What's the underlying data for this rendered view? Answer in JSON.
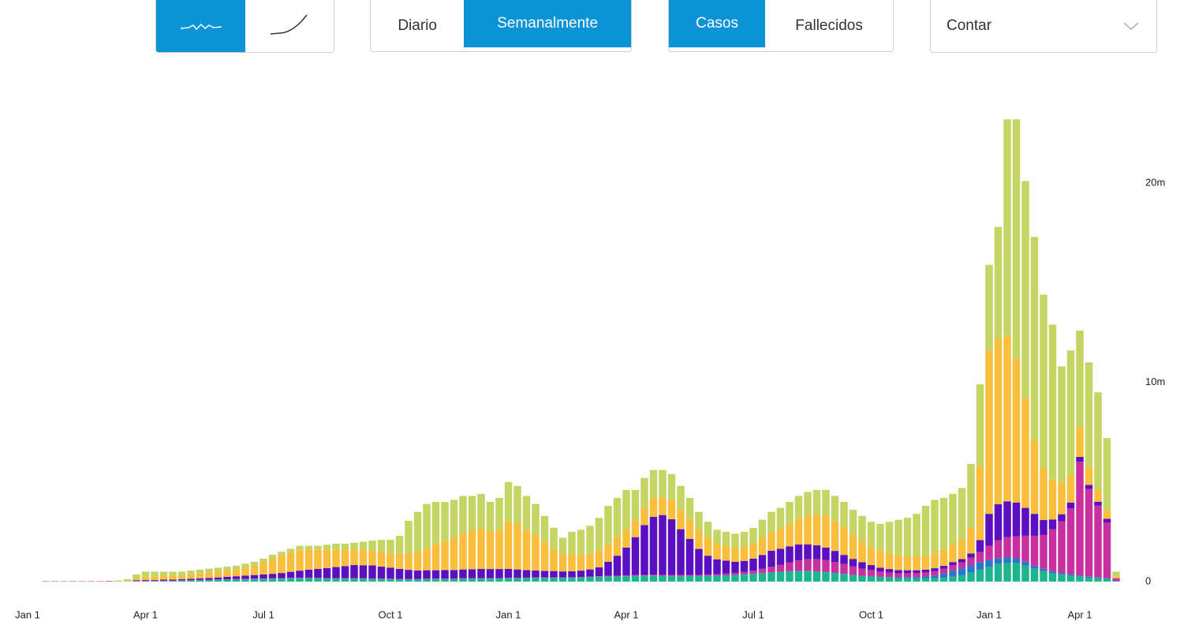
{
  "controls": {
    "period": [
      "Diario",
      "Semanalmente"
    ],
    "metric": [
      "Casos",
      "Fallecidos"
    ],
    "mode": "Contar"
  },
  "chart_data": {
    "type": "stacked_bar",
    "categories": [
      "Jan 1",
      null,
      null,
      null,
      null,
      null,
      null,
      null,
      null,
      null,
      null,
      null,
      null,
      "Apr 1",
      null,
      null,
      null,
      null,
      null,
      null,
      null,
      null,
      null,
      null,
      null,
      null,
      "Jul 1",
      null,
      null,
      null,
      null,
      null,
      null,
      null,
      null,
      null,
      null,
      null,
      null,
      null,
      "Oct 1",
      null,
      null,
      null,
      null,
      null,
      null,
      null,
      null,
      null,
      null,
      null,
      null,
      "Jan 1",
      null,
      null,
      null,
      null,
      null,
      null,
      null,
      null,
      null,
      null,
      null,
      null,
      "Apr 1",
      null,
      null,
      null,
      null,
      null,
      null,
      null,
      null,
      null,
      null,
      null,
      null,
      null,
      "Jul 1",
      null,
      null,
      null,
      null,
      null,
      null,
      null,
      null,
      null,
      null,
      null,
      null,
      "Oct 1",
      null,
      null,
      null,
      null,
      null,
      null,
      null,
      null,
      null,
      null,
      null,
      null,
      "Jan 1",
      null,
      null,
      null,
      null,
      null,
      null,
      null,
      null,
      null,
      "Apr 1",
      null,
      null,
      null,
      null
    ],
    "ylim": [
      0,
      24
    ],
    "yticks": [
      0,
      {
        "value": 10,
        "label": "10m"
      },
      {
        "value": 20,
        "label": "20m"
      }
    ],
    "series": [
      {
        "color": "#1db58c",
        "values": [
          0,
          0,
          0,
          0,
          0,
          0,
          0,
          0,
          0,
          0,
          0,
          0,
          0.01,
          0.02,
          0.02,
          0.03,
          0.03,
          0.04,
          0.05,
          0.06,
          0.07,
          0.08,
          0.09,
          0.1,
          0.11,
          0.12,
          0.13,
          0.14,
          0.15,
          0.16,
          0.17,
          0.17,
          0.16,
          0.15,
          0.15,
          0.15,
          0.15,
          0.14,
          0.13,
          0.12,
          0.12,
          0.11,
          0.11,
          0.11,
          0.12,
          0.12,
          0.13,
          0.13,
          0.14,
          0.14,
          0.15,
          0.15,
          0.15,
          0.16,
          0.16,
          0.17,
          0.18,
          0.18,
          0.18,
          0.18,
          0.19,
          0.2,
          0.22,
          0.24,
          0.25,
          0.26,
          0.27,
          0.28,
          0.29,
          0.29,
          0.28,
          0.27,
          0.27,
          0.28,
          0.28,
          0.28,
          0.29,
          0.3,
          0.32,
          0.35,
          0.38,
          0.42,
          0.45,
          0.48,
          0.5,
          0.52,
          0.52,
          0.5,
          0.47,
          0.42,
          0.37,
          0.32,
          0.28,
          0.25,
          0.22,
          0.2,
          0.18,
          0.17,
          0.16,
          0.16,
          0.17,
          0.2,
          0.25,
          0.32,
          0.45,
          0.6,
          0.75,
          0.88,
          0.95,
          0.92,
          0.8,
          0.65,
          0.52,
          0.42,
          0.35,
          0.3,
          0.25,
          0.2,
          0.17,
          0.14,
          0.02
        ]
      },
      {
        "color": "#2a77c9",
        "values": [
          0,
          0,
          0,
          0,
          0,
          0,
          0,
          0,
          0,
          0,
          0,
          0,
          0.01,
          0.01,
          0.01,
          0.01,
          0.01,
          0.01,
          0.01,
          0.01,
          0.01,
          0.01,
          0.01,
          0.01,
          0.01,
          0.01,
          0.01,
          0.01,
          0.01,
          0.01,
          0.01,
          0.01,
          0.01,
          0.01,
          0.01,
          0.01,
          0.01,
          0.01,
          0.01,
          0.01,
          0.01,
          0.01,
          0.01,
          0.01,
          0.01,
          0.01,
          0.01,
          0.01,
          0.01,
          0.01,
          0.01,
          0.01,
          0.01,
          0.01,
          0.01,
          0.01,
          0.01,
          0.01,
          0.01,
          0.01,
          0.01,
          0.01,
          0.01,
          0.01,
          0.01,
          0.01,
          0.01,
          0.01,
          0.01,
          0.01,
          0.01,
          0.01,
          0.01,
          0.01,
          0.01,
          0.01,
          0.01,
          0.02,
          0.02,
          0.02,
          0.02,
          0.02,
          0.02,
          0.02,
          0.02,
          0.02,
          0.02,
          0.02,
          0.02,
          0.02,
          0.02,
          0.02,
          0.02,
          0.03,
          0.03,
          0.03,
          0.04,
          0.05,
          0.07,
          0.1,
          0.14,
          0.2,
          0.3,
          0.35,
          0.38,
          0.38,
          0.35,
          0.3,
          0.28,
          0.25,
          0.2,
          0.15,
          0.12,
          0.1,
          0.08,
          0.07,
          0.06,
          0.05,
          0.04,
          0.03,
          0.01
        ]
      },
      {
        "color": "#c8309f",
        "values": [
          0,
          0,
          0.02,
          0.02,
          0.02,
          0.02,
          0.02,
          0.02,
          0.02,
          0.03,
          0.01,
          0.01,
          0.02,
          0.02,
          0.02,
          0.02,
          0.02,
          0.02,
          0.02,
          0.02,
          0.02,
          0.02,
          0.02,
          0.02,
          0.02,
          0.02,
          0.02,
          0.02,
          0.02,
          0.02,
          0.02,
          0.02,
          0.02,
          0.02,
          0.02,
          0.02,
          0.02,
          0.02,
          0.02,
          0.02,
          0.02,
          0.02,
          0.02,
          0.02,
          0.02,
          0.02,
          0.02,
          0.02,
          0.02,
          0.02,
          0.02,
          0.02,
          0.02,
          0.02,
          0.02,
          0.02,
          0.02,
          0.02,
          0.02,
          0.02,
          0.02,
          0.02,
          0.02,
          0.02,
          0.03,
          0.03,
          0.03,
          0.04,
          0.04,
          0.05,
          0.05,
          0.05,
          0.05,
          0.05,
          0.05,
          0.06,
          0.07,
          0.08,
          0.1,
          0.12,
          0.15,
          0.2,
          0.28,
          0.35,
          0.45,
          0.52,
          0.58,
          0.6,
          0.6,
          0.55,
          0.5,
          0.42,
          0.35,
          0.3,
          0.25,
          0.22,
          0.2,
          0.2,
          0.2,
          0.2,
          0.22,
          0.25,
          0.28,
          0.3,
          0.38,
          0.5,
          0.7,
          0.9,
          1.0,
          1.1,
          1.3,
          1.5,
          1.7,
          2.1,
          2.6,
          3.3,
          5.7,
          4.4,
          3.6,
          2.8,
          0.12
        ]
      },
      {
        "color": "#5a0fc0",
        "values": [
          0,
          0,
          0,
          0,
          0,
          0,
          0,
          0,
          0,
          0,
          0,
          0,
          0.02,
          0.03,
          0.03,
          0.04,
          0.04,
          0.05,
          0.06,
          0.07,
          0.08,
          0.1,
          0.12,
          0.14,
          0.16,
          0.18,
          0.2,
          0.22,
          0.25,
          0.3,
          0.35,
          0.4,
          0.45,
          0.5,
          0.55,
          0.6,
          0.65,
          0.65,
          0.65,
          0.6,
          0.55,
          0.5,
          0.45,
          0.42,
          0.42,
          0.42,
          0.42,
          0.42,
          0.44,
          0.45,
          0.46,
          0.45,
          0.45,
          0.45,
          0.42,
          0.38,
          0.35,
          0.33,
          0.32,
          0.3,
          0.3,
          0.32,
          0.36,
          0.45,
          0.7,
          1.0,
          1.4,
          1.9,
          2.5,
          2.9,
          3.0,
          2.8,
          2.3,
          1.8,
          1.3,
          0.95,
          0.75,
          0.65,
          0.55,
          0.55,
          0.6,
          0.7,
          0.8,
          0.8,
          0.8,
          0.8,
          0.75,
          0.7,
          0.62,
          0.55,
          0.45,
          0.38,
          0.32,
          0.25,
          0.2,
          0.18,
          0.16,
          0.15,
          0.14,
          0.14,
          0.14,
          0.14,
          0.15,
          0.16,
          0.2,
          0.6,
          1.6,
          1.8,
          1.8,
          1.7,
          1.4,
          1.1,
          0.75,
          0.5,
          0.35,
          0.3,
          0.25,
          0.2,
          0.2,
          0.18,
          0.02
        ]
      },
      {
        "color": "#fbbd3c",
        "values": [
          0,
          0,
          0,
          0,
          0,
          0,
          0,
          0,
          0,
          0,
          0,
          0.02,
          0.1,
          0.15,
          0.17,
          0.18,
          0.2,
          0.2,
          0.22,
          0.25,
          0.27,
          0.29,
          0.31,
          0.33,
          0.4,
          0.47,
          0.59,
          0.76,
          0.87,
          0.96,
          1.05,
          1.0,
          0.96,
          0.92,
          0.87,
          0.82,
          0.77,
          0.78,
          0.75,
          0.75,
          0.7,
          0.76,
          0.86,
          0.94,
          1.1,
          1.3,
          1.45,
          1.6,
          1.8,
          1.95,
          2.05,
          1.9,
          2.0,
          2.4,
          2.3,
          2.0,
          1.8,
          1.45,
          1.1,
          0.85,
          0.85,
          0.8,
          0.8,
          0.85,
          0.9,
          0.95,
          0.9,
          0.85,
          0.86,
          0.95,
          0.9,
          0.95,
          0.97,
          1.0,
          0.96,
          0.9,
          0.8,
          0.75,
          0.7,
          0.7,
          0.75,
          0.86,
          0.95,
          1.0,
          1.1,
          1.3,
          1.45,
          1.55,
          1.6,
          1.5,
          1.4,
          1.2,
          1.05,
          0.9,
          0.85,
          0.8,
          0.75,
          0.7,
          0.7,
          0.7,
          0.75,
          0.8,
          0.9,
          1.0,
          1.3,
          3.7,
          8.2,
          8.3,
          8.3,
          7.2,
          5.5,
          3.7,
          2.6,
          2.0,
          1.6,
          1.4,
          1.5,
          0.9,
          0.6,
          0.45,
          0.08
        ]
      },
      {
        "color": "#c5d463",
        "values": [
          0,
          0,
          0,
          0,
          0,
          0,
          0,
          0,
          0,
          0,
          0.05,
          0.09,
          0.2,
          0.27,
          0.25,
          0.22,
          0.2,
          0.18,
          0.19,
          0.19,
          0.2,
          0.2,
          0.2,
          0.2,
          0.2,
          0.2,
          0.2,
          0.2,
          0.2,
          0.2,
          0.2,
          0.2,
          0.2,
          0.25,
          0.3,
          0.3,
          0.35,
          0.4,
          0.5,
          0.6,
          0.7,
          0.9,
          1.6,
          2.0,
          2.23,
          2.13,
          1.97,
          1.92,
          1.89,
          1.73,
          1.71,
          1.47,
          1.57,
          1.96,
          1.89,
          1.72,
          1.54,
          1.31,
          1.07,
          0.84,
          1.13,
          1.25,
          1.39,
          1.63,
          1.91,
          1.95,
          1.99,
          1.52,
          1.5,
          1.4,
          1.36,
          1.32,
          1.2,
          1.06,
          0.9,
          0.8,
          0.68,
          0.7,
          0.71,
          0.76,
          0.8,
          0.9,
          1.0,
          1.05,
          1.13,
          1.14,
          1.18,
          1.23,
          1.29,
          1.26,
          1.26,
          1.26,
          1.28,
          1.27,
          1.35,
          1.57,
          1.77,
          1.93,
          2.13,
          2.5,
          2.68,
          2.61,
          2.52,
          2.57,
          3.19,
          4.12,
          4.3,
          5.62,
          10.87,
          12.03,
          10.9,
          10.2,
          8.71,
          7.78,
          5.82,
          6.23,
          4.84,
          5.25,
          4.89,
          3.6,
          0.25
        ]
      }
    ]
  }
}
